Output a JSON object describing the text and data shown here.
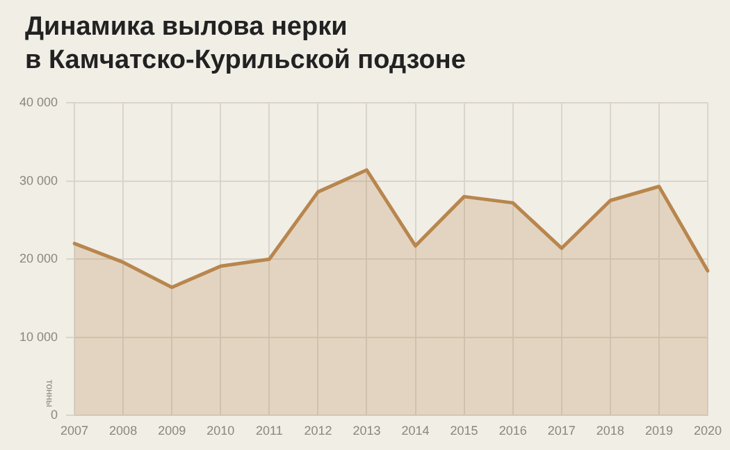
{
  "chart_data": {
    "type": "area",
    "title": "Динамика вылова нерки\nв Камчатско-Курильской подзоне",
    "ylabel": "тонны",
    "categories": [
      "2007",
      "2008",
      "2009",
      "2010",
      "2011",
      "2012",
      "2013",
      "2014",
      "2015",
      "2016",
      "2017",
      "2018",
      "2019",
      "2020"
    ],
    "series": [
      {
        "color": "#b8864e",
        "values": [
          22000,
          19600,
          16400,
          19100,
          20000,
          28600,
          31400,
          21700,
          28000,
          27200,
          21400,
          27500,
          29300,
          18500
        ]
      }
    ],
    "ylim": [
      0,
      40000
    ],
    "yticks": [
      0,
      {
        "value": 10000,
        "label": "10 000"
      },
      {
        "value": 20000,
        "label": "20 000"
      },
      {
        "value": 30000,
        "label": "30 000"
      },
      {
        "value": 40000,
        "label": "40 000"
      }
    ],
    "grid": true,
    "legend": false
  }
}
